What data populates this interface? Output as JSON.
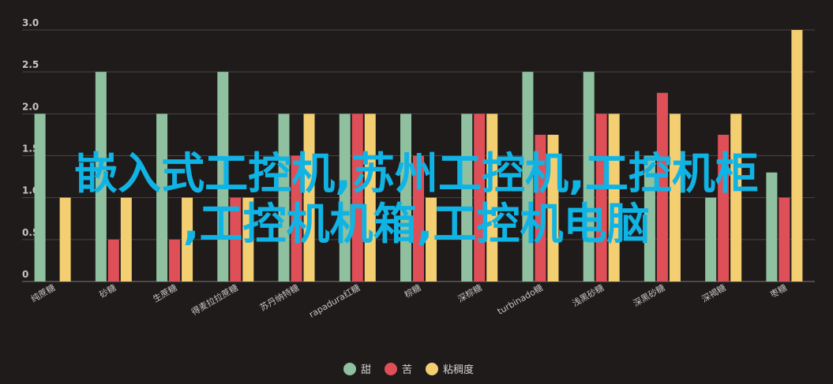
{
  "chart_data": {
    "type": "bar",
    "categories": [
      "纯蔗糖",
      "砂糖",
      "生蔗糖",
      "得麦拉拉蔗糖",
      "苏丹纳特糖",
      "rapadura红糖",
      "棕糖",
      "深棕糖",
      "turbinado糖",
      "浅黑砂糖",
      "深黑砂糖",
      "深褐糖",
      "枣糖"
    ],
    "series": [
      {
        "name": "甜",
        "color": "#8fc1a0",
        "values": [
          2.0,
          2.5,
          2.0,
          2.5,
          2.0,
          2.0,
          2.0,
          2.0,
          2.5,
          2.5,
          1.5,
          1.0,
          1.3
        ]
      },
      {
        "name": "苦",
        "color": "#df4f58",
        "values": [
          0,
          0.5,
          0.5,
          1.0,
          1.5,
          2.0,
          1.5,
          2.0,
          1.75,
          2.0,
          2.25,
          1.75,
          1.0
        ]
      },
      {
        "name": "粘稠度",
        "color": "#f4cf72",
        "values": [
          1.0,
          1.0,
          1.0,
          1.0,
          2.0,
          2.0,
          1.0,
          2.0,
          1.75,
          2.0,
          2.0,
          2.0,
          3.0
        ]
      }
    ],
    "yticks": [
      "0",
      "0.5",
      "1.0",
      "1.5",
      "2.0",
      "2.5",
      "3.0"
    ],
    "ylim": [
      0,
      3.0
    ],
    "grid": true,
    "legend": "bottom-center"
  },
  "overlay_text": {
    "line1": "嵌入式工控机,苏州工控机,工控机柜",
    "line2": ",工控机机箱,工控机电脑"
  }
}
